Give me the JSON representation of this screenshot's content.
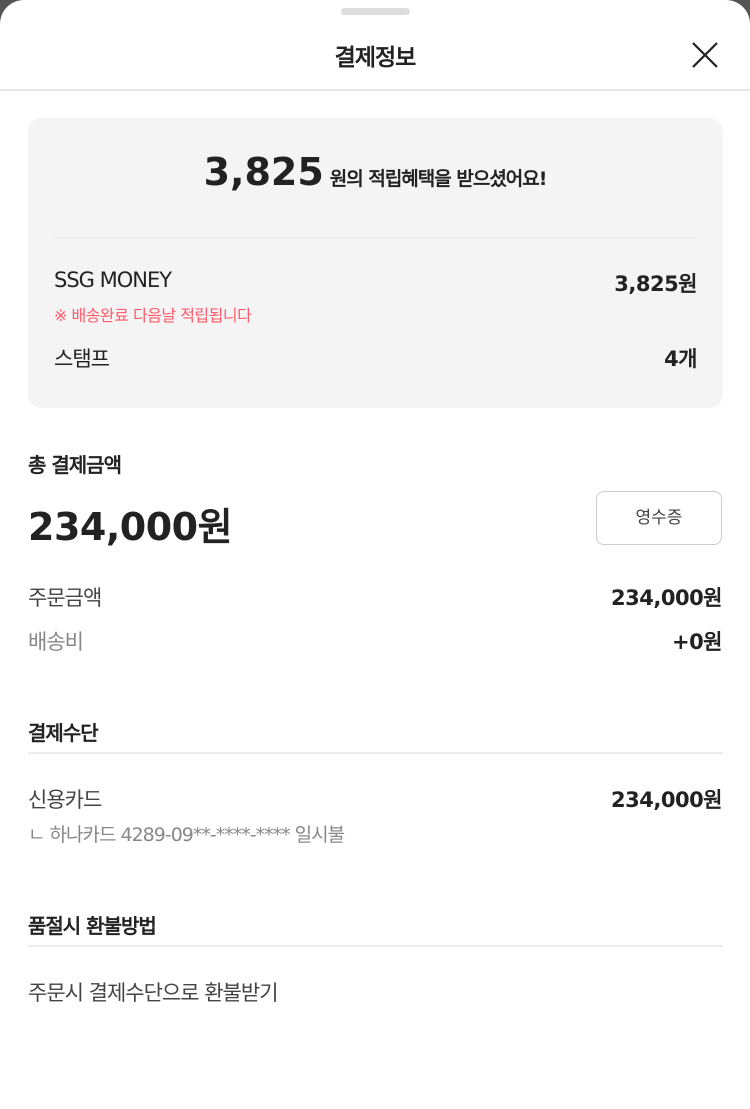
{
  "header": {
    "title": "결제정보",
    "close_icon": "close-icon"
  },
  "benefit": {
    "amount": "3,825",
    "message": "원의 적립혜택을 받으셨어요!",
    "items": [
      {
        "label": "SSG MONEY",
        "value": "3,825원",
        "note": "※ 배송완료 다음날 적립됩니다"
      },
      {
        "label": "스탬프",
        "value": "4개"
      }
    ],
    "note_color": "#ff5a6a"
  },
  "total": {
    "title": "총 결제금액",
    "amount": "234,000원",
    "receipt_button": "영수증",
    "rows": [
      {
        "label": "주문금액",
        "value": "234,000원"
      },
      {
        "label": "배송비",
        "value": "+0원"
      }
    ]
  },
  "payment": {
    "title": "결제수단",
    "method": "신용카드",
    "amount": "234,000원",
    "detail": "ㄴ 하나카드  4289-09**-****-**** 일시불"
  },
  "refund": {
    "title": "품절시 환불방법",
    "method": "주문시 결제수단으로 환불받기"
  }
}
